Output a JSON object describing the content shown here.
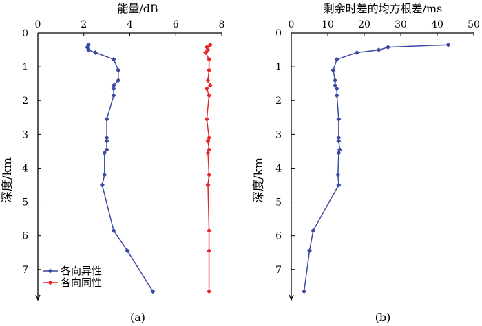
{
  "chart_data": [
    {
      "type": "line",
      "panel_label": "(a)",
      "title": "能量/dB",
      "ylabel": "深度/km",
      "x_ticks": [
        "0",
        "2",
        "4",
        "6",
        "8"
      ],
      "y_ticks": [
        "0",
        "1",
        "2",
        "3",
        "4",
        "5",
        "6",
        "7"
      ],
      "xlim": [
        0,
        8
      ],
      "ylim": [
        0,
        7.9
      ],
      "y_inverted": true,
      "legend": [
        "各向异性",
        "各向同性"
      ],
      "series": [
        {
          "name": "各向异性",
          "color": "#3a4aa3",
          "marker": "diamond",
          "points": [
            [
              2.2,
              0.35
            ],
            [
              2.15,
              0.42
            ],
            [
              2.2,
              0.5
            ],
            [
              2.5,
              0.58
            ],
            [
              3.3,
              0.78
            ],
            [
              3.5,
              1.1
            ],
            [
              3.5,
              1.4
            ],
            [
              3.3,
              1.55
            ],
            [
              3.3,
              1.65
            ],
            [
              3.3,
              1.85
            ],
            [
              3.0,
              2.55
            ],
            [
              3.0,
              3.1
            ],
            [
              3.0,
              3.2
            ],
            [
              3.0,
              3.45
            ],
            [
              2.9,
              3.55
            ],
            [
              2.9,
              4.2
            ],
            [
              2.8,
              4.5
            ],
            [
              3.3,
              5.85
            ],
            [
              3.9,
              6.45
            ],
            [
              5.0,
              7.65
            ]
          ]
        },
        {
          "name": "各向同性",
          "color": "#e8262a",
          "marker": "diamond",
          "points": [
            [
              7.5,
              0.35
            ],
            [
              7.35,
              0.42
            ],
            [
              7.4,
              0.5
            ],
            [
              7.3,
              0.58
            ],
            [
              7.45,
              0.78
            ],
            [
              7.45,
              1.1
            ],
            [
              7.4,
              1.4
            ],
            [
              7.5,
              1.55
            ],
            [
              7.35,
              1.65
            ],
            [
              7.45,
              1.85
            ],
            [
              7.35,
              2.55
            ],
            [
              7.45,
              3.1
            ],
            [
              7.4,
              3.2
            ],
            [
              7.45,
              3.45
            ],
            [
              7.4,
              3.55
            ],
            [
              7.45,
              4.2
            ],
            [
              7.4,
              4.5
            ],
            [
              7.45,
              5.85
            ],
            [
              7.45,
              6.45
            ],
            [
              7.45,
              7.65
            ]
          ]
        }
      ]
    },
    {
      "type": "line",
      "panel_label": "(b)",
      "title": "剩余时差的均方根差/ms",
      "ylabel": "深度/km",
      "x_ticks": [
        "0",
        "10",
        "20",
        "30",
        "40",
        "50"
      ],
      "y_ticks": [
        "0",
        "1",
        "2",
        "3",
        "4",
        "5",
        "6",
        "7"
      ],
      "xlim": [
        0,
        50
      ],
      "ylim": [
        0,
        7.9
      ],
      "y_inverted": true,
      "series": [
        {
          "name": "剩余时差的均方根差",
          "color": "#3a4aa3",
          "marker": "diamond",
          "points": [
            [
              43,
              0.35
            ],
            [
              26.5,
              0.42
            ],
            [
              24,
              0.5
            ],
            [
              18,
              0.58
            ],
            [
              12.5,
              0.78
            ],
            [
              11.5,
              1.1
            ],
            [
              12,
              1.4
            ],
            [
              12,
              1.55
            ],
            [
              12.5,
              1.65
            ],
            [
              12.5,
              1.85
            ],
            [
              13,
              2.55
            ],
            [
              13,
              3.1
            ],
            [
              13,
              3.2
            ],
            [
              13.3,
              3.45
            ],
            [
              13,
              3.55
            ],
            [
              12.8,
              4.2
            ],
            [
              13,
              4.5
            ],
            [
              6,
              5.85
            ],
            [
              5,
              6.45
            ],
            [
              3.5,
              7.65
            ]
          ]
        }
      ]
    }
  ]
}
